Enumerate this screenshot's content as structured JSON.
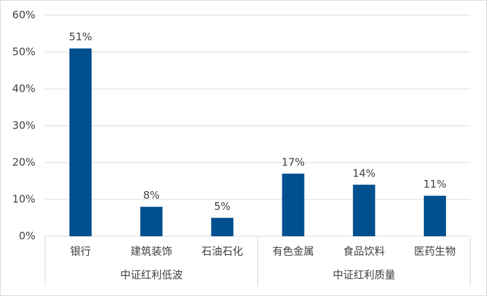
{
  "chart_data": {
    "type": "bar",
    "groups": [
      {
        "name": "中证红利低波",
        "categories": [
          "银行",
          "建筑装饰",
          "石油石化"
        ]
      },
      {
        "name": "中证红利质量",
        "categories": [
          "有色金属",
          "食品饮料",
          "医药生物"
        ]
      }
    ],
    "values": [
      51,
      8,
      5,
      17,
      14,
      11
    ],
    "value_labels": [
      "51%",
      "8%",
      "5%",
      "17%",
      "14%",
      "11%"
    ],
    "color": "#004f8f",
    "ylim": [
      0,
      60
    ],
    "yticks": [
      {
        "value": 0,
        "label": "0%"
      },
      {
        "value": 10,
        "label": "10%"
      },
      {
        "value": 20,
        "label": "20%"
      },
      {
        "value": 30,
        "label": "30%"
      },
      {
        "value": 40,
        "label": "40%"
      },
      {
        "value": 50,
        "label": "50%"
      },
      {
        "value": 60,
        "label": "60%"
      }
    ],
    "grid": true
  }
}
